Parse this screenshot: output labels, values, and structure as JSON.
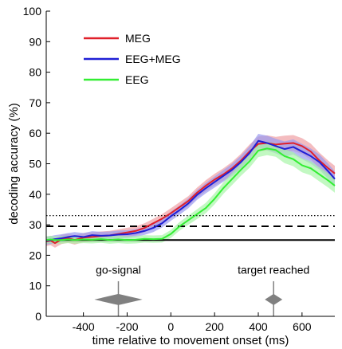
{
  "chart_data": {
    "type": "line",
    "xlabel": "time relative to movement onset (ms)",
    "ylabel": "decoding accuracy (%)",
    "xlim": [
      -570,
      750
    ],
    "ylim": [
      0,
      100
    ],
    "xticks": [
      -400,
      -200,
      0,
      200,
      400,
      600
    ],
    "yticks": [
      0,
      10,
      20,
      30,
      40,
      50,
      60,
      70,
      80,
      90,
      100
    ],
    "grid": false,
    "legend_position": "top-left",
    "series": [
      {
        "name": "MEG",
        "color": "#e0202a",
        "band_color": "#f0a0a4",
        "x": [
          -570,
          -550,
          -530,
          -500,
          -470,
          -440,
          -400,
          -360,
          -320,
          -280,
          -240,
          -200,
          -160,
          -120,
          -80,
          -40,
          0,
          40,
          80,
          120,
          160,
          200,
          240,
          280,
          320,
          360,
          400,
          440,
          480,
          520,
          560,
          600,
          640,
          680,
          720,
          750
        ],
        "y": [
          24.5,
          24.8,
          24.0,
          25.2,
          25.6,
          25.0,
          25.8,
          26.0,
          26.3,
          26.5,
          27.0,
          27.5,
          28.0,
          29.0,
          30.5,
          32.0,
          33.8,
          35.8,
          37.8,
          40.5,
          42.8,
          44.8,
          46.5,
          48.5,
          51.0,
          54.0,
          56.5,
          56.8,
          56.3,
          56.6,
          56.8,
          55.8,
          54.0,
          51.0,
          48.5,
          46.8
        ],
        "band": [
          1.5,
          1.5,
          1.5,
          1.5,
          1.5,
          1.5,
          1.5,
          1.5,
          1.5,
          1.5,
          1.5,
          1.5,
          1.5,
          1.5,
          1.5,
          1.5,
          1.6,
          1.6,
          1.6,
          1.7,
          1.8,
          1.9,
          2.0,
          2.1,
          2.2,
          2.3,
          2.4,
          2.5,
          2.5,
          2.6,
          2.6,
          2.6,
          2.6,
          2.6,
          2.5,
          2.5
        ]
      },
      {
        "name": "EEG+MEG",
        "color": "#1f1fd6",
        "band_color": "#9a9af0",
        "x": [
          -570,
          -550,
          -530,
          -500,
          -470,
          -440,
          -400,
          -360,
          -320,
          -280,
          -240,
          -200,
          -160,
          -120,
          -80,
          -40,
          0,
          40,
          80,
          120,
          160,
          200,
          240,
          280,
          320,
          360,
          400,
          440,
          480,
          520,
          560,
          600,
          640,
          680,
          720,
          750
        ],
        "y": [
          24.8,
          25.0,
          25.3,
          25.6,
          26.0,
          26.3,
          26.0,
          26.6,
          26.4,
          26.5,
          26.8,
          26.9,
          27.3,
          28.0,
          29.0,
          30.5,
          32.8,
          34.8,
          37.0,
          39.8,
          42.0,
          44.0,
          46.0,
          48.0,
          50.5,
          53.5,
          57.5,
          56.8,
          55.8,
          54.8,
          55.5,
          54.0,
          52.5,
          50.5,
          47.5,
          45.0
        ],
        "band": [
          1.3,
          1.3,
          1.3,
          1.3,
          1.3,
          1.3,
          1.3,
          1.3,
          1.3,
          1.3,
          1.3,
          1.3,
          1.3,
          1.3,
          1.4,
          1.4,
          1.5,
          1.5,
          1.6,
          1.6,
          1.7,
          1.8,
          1.9,
          2.0,
          2.1,
          2.2,
          2.3,
          2.4,
          2.4,
          2.5,
          2.5,
          2.5,
          2.5,
          2.5,
          2.5,
          2.5
        ]
      },
      {
        "name": "EEG",
        "color": "#33ee33",
        "band_color": "#a8f5a8",
        "x": [
          -570,
          -550,
          -530,
          -500,
          -470,
          -440,
          -400,
          -360,
          -320,
          -280,
          -240,
          -200,
          -160,
          -120,
          -80,
          -40,
          0,
          40,
          80,
          120,
          160,
          200,
          240,
          280,
          320,
          360,
          400,
          440,
          480,
          520,
          560,
          600,
          640,
          680,
          720,
          750
        ],
        "y": [
          25.0,
          25.2,
          25.0,
          25.0,
          25.2,
          25.0,
          25.2,
          25.1,
          25.3,
          25.0,
          25.2,
          25.0,
          25.1,
          25.4,
          25.3,
          25.4,
          27.0,
          29.5,
          31.5,
          33.5,
          35.5,
          38.5,
          42.0,
          45.0,
          48.0,
          50.8,
          54.3,
          55.0,
          54.5,
          52.5,
          51.5,
          49.5,
          48.5,
          46.5,
          44.5,
          42.8
        ],
        "band": [
          1.2,
          1.2,
          1.2,
          1.2,
          1.2,
          1.2,
          1.2,
          1.2,
          1.2,
          1.2,
          1.2,
          1.2,
          1.2,
          1.2,
          1.2,
          1.2,
          1.3,
          1.4,
          1.5,
          1.6,
          1.7,
          1.8,
          1.9,
          2.0,
          2.0,
          2.1,
          2.1,
          2.2,
          2.2,
          2.3,
          2.3,
          2.3,
          2.3,
          2.3,
          2.3,
          2.3
        ]
      }
    ],
    "reference_lines": [
      {
        "style": "solid",
        "y": 25
      },
      {
        "style": "dashed",
        "y": 29.5
      },
      {
        "style": "dotted",
        "y": 33
      }
    ],
    "annotations": [
      {
        "label": "go-signal",
        "x": -240,
        "half_width_ms": 110,
        "color": "#808080"
      },
      {
        "label": "target reached",
        "x": 470,
        "half_width_ms": 40,
        "color": "#808080"
      }
    ]
  }
}
